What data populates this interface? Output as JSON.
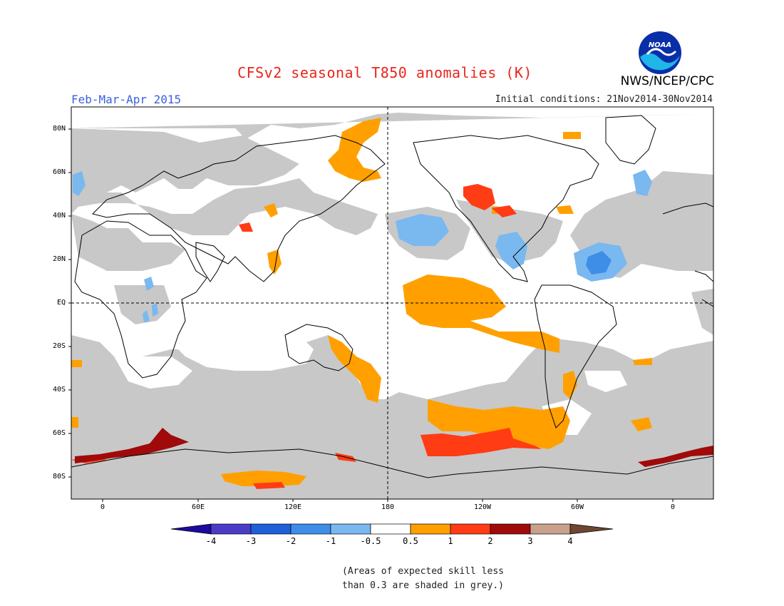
{
  "header": {
    "title": "CFSv2 seasonal T850 anomalies (K)",
    "season": "Feb-Mar-Apr 2015",
    "initial_conditions": "Initial conditions: 21Nov2014-30Nov2014",
    "agency": "NWS/NCEP/CPC",
    "logo_text": "NOAA"
  },
  "axes": {
    "lat_labels": [
      "80N",
      "60N",
      "40N",
      "20N",
      "EQ",
      "20S",
      "40S",
      "60S",
      "80S"
    ],
    "lon_labels": [
      "0",
      "60E",
      "120E",
      "180",
      "120W",
      "60W",
      "0"
    ]
  },
  "colorbar": {
    "labels": [
      "-4",
      "-3",
      "-2",
      "-1",
      "-0.5",
      "0.5",
      "1",
      "2",
      "3",
      "4"
    ],
    "colors": [
      "#1c0aa0",
      "#4b3cc8",
      "#1f60d8",
      "#3e8ee8",
      "#7ab8f0",
      "#ffffff",
      "#ffa000",
      "#ff3c14",
      "#a00a0a",
      "#c8a08c",
      "#6e4632"
    ]
  },
  "footnote": {
    "line1": "(Areas of expected skill less",
    "line2": "than 0.3 are shaded in grey.)"
  },
  "colors": {
    "grey_low_skill": "#c8c8c8",
    "anomaly_0_5_to_1": "#ffa000",
    "anomaly_1_to_2": "#ff3c14",
    "anomaly_2_to_3": "#a00a0a",
    "anomaly_neg_0_5_to_1": "#7ab8f0",
    "anomaly_neg_1_to_2": "#3e8ee8"
  }
}
